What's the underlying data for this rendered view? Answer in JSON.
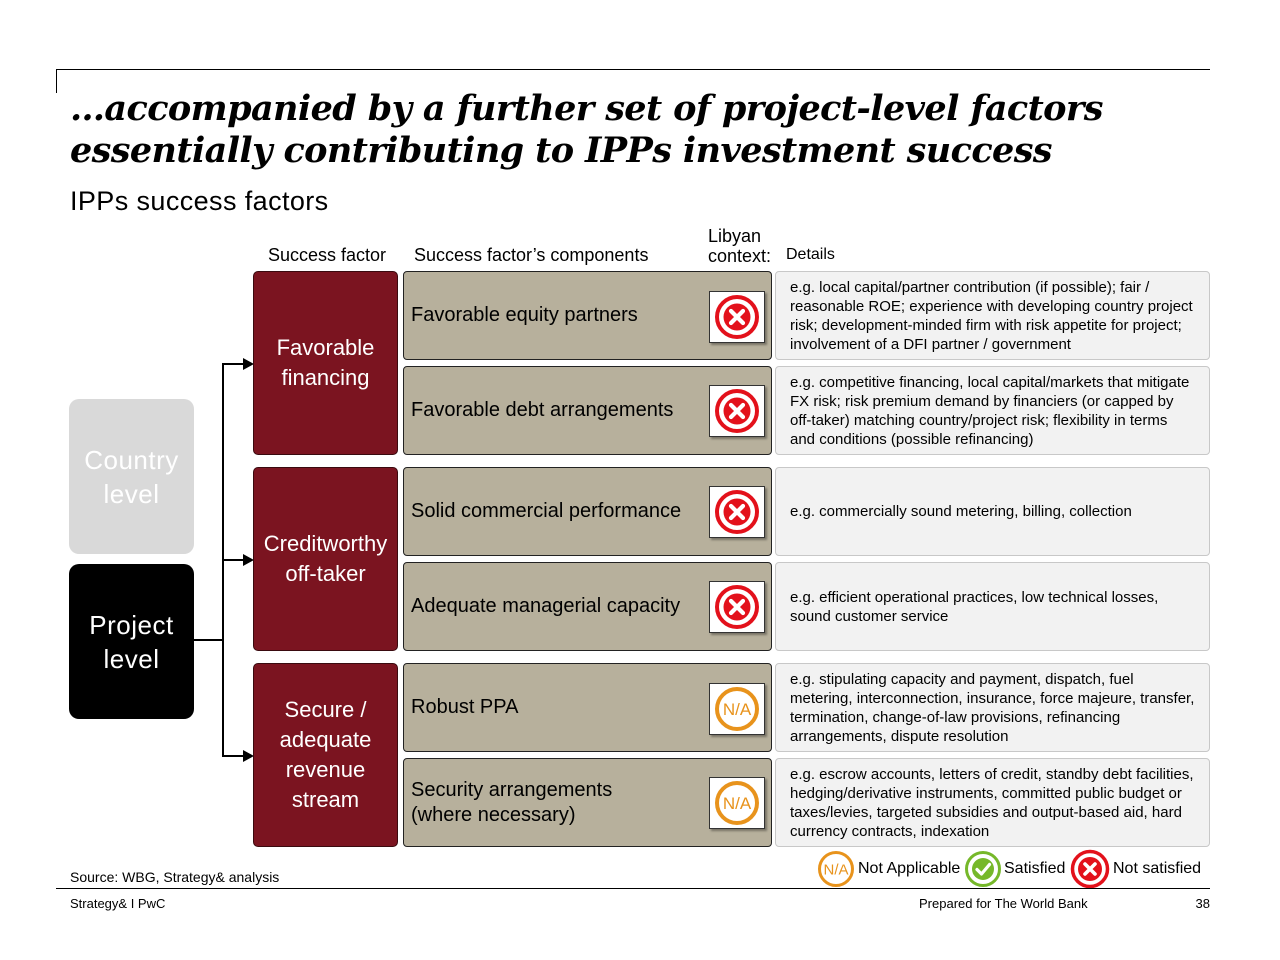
{
  "title": "…accompanied by a further set of project-level factors essentially contributing to IPPs investment success",
  "subtitle": "IPPs success factors",
  "headers": {
    "factor": "Success factor",
    "components": "Success factor’s components",
    "context": "Libyan context:",
    "details": "Details"
  },
  "levels": {
    "country": "Country level",
    "project": "Project level"
  },
  "factors": [
    {
      "label": "Favorable financing"
    },
    {
      "label": "Creditworthy off-taker"
    },
    {
      "label": "Secure / adequate revenue stream"
    }
  ],
  "rows": [
    {
      "component": "Favorable equity partners",
      "status": "not-satisfied",
      "detail": "e.g. local capital/partner contribution (if possible); fair / reasonable ROE; experience with developing country project risk; development-minded firm with risk appetite for project; involvement of a DFI partner / government"
    },
    {
      "component": "Favorable debt arrangements",
      "status": "not-satisfied",
      "detail": "e.g. competitive financing, local capital/markets that mitigate FX risk; risk premium demand by financiers (or capped by off-taker) matching country/project risk; flexibility in terms and conditions (possible refinancing)"
    },
    {
      "component": "Solid commercial performance",
      "status": "not-satisfied",
      "detail": "e.g. commercially sound metering, billing, collection"
    },
    {
      "component": "Adequate managerial capacity",
      "status": "not-satisfied",
      "detail": "e.g. efficient operational practices, low technical losses, sound customer service"
    },
    {
      "component": "Robust PPA",
      "status": "na",
      "detail": "e.g. stipulating capacity and payment, dispatch, fuel metering, interconnection, insurance, force majeure, transfer, termination, change-of-law provisions, refinancing arrangements, dispute resolution"
    },
    {
      "component": "Security arrangements (where necessary)",
      "status": "na",
      "detail": "e.g. escrow accounts, letters of credit, standby debt facilities, hedging/derivative instruments, committed public budget or taxes/levies, targeted subsidies and output-based aid, hard currency contracts, indexation"
    }
  ],
  "na_badge": "N/A",
  "legend": {
    "na": "Not Applicable",
    "satisfied": "Satisfied",
    "not_satisfied": "Not satisfied"
  },
  "source": "Source: WBG, Strategy& analysis",
  "footer": {
    "left": "Strategy& I PwC",
    "center": "Prepared for The World Bank",
    "page": "38"
  },
  "colors": {
    "factor_red": "#7b1420",
    "component_tan": "#b7b09c",
    "not_satisfied_red": "#e3111b",
    "na_orange": "#e8931c",
    "satisfied_green": "#76b82a",
    "country_gray": "#d9d9d9",
    "project_black": "#000000"
  },
  "icons": {
    "not_satisfied": "x-circle-icon",
    "na": "na-circle-icon",
    "satisfied": "check-circle-icon"
  }
}
